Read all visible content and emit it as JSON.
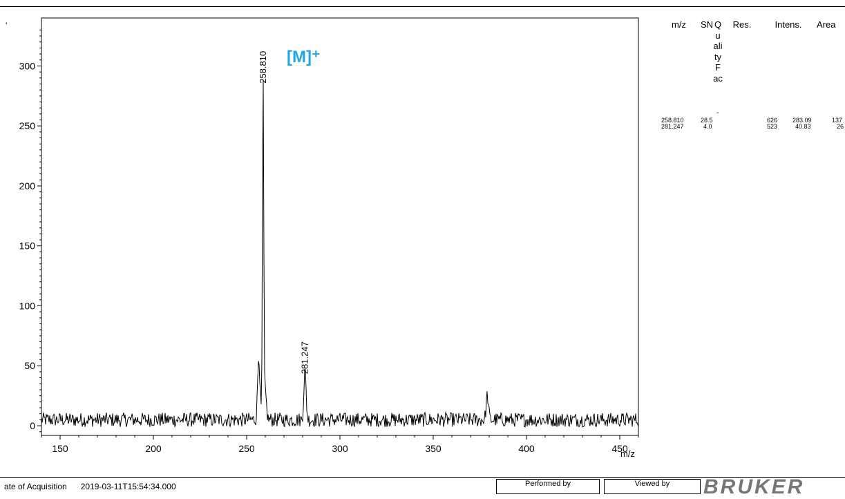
{
  "corner_mark": "'",
  "chart_data": {
    "type": "line",
    "title": "",
    "xlabel": "m/z",
    "ylabel": "",
    "xlim": [
      140,
      460
    ],
    "ylim": [
      -10,
      340
    ],
    "x_ticks": [
      150,
      200,
      250,
      300,
      350,
      400,
      450
    ],
    "y_ticks": [
      0,
      50,
      100,
      150,
      200,
      250,
      300
    ],
    "grid": false,
    "baseline_noise_level": 5,
    "peaks": [
      {
        "x": 256.5,
        "y": 54
      },
      {
        "x": 258.81,
        "y": 283.09,
        "label": "258.810"
      },
      {
        "x": 260.0,
        "y": 22
      },
      {
        "x": 281.247,
        "y": 40.83,
        "label": "281.247"
      },
      {
        "x": 379.0,
        "y": 20
      }
    ],
    "annotations": [
      {
        "text": "[M]⁺",
        "color": "#1fa8e0",
        "at_x": 271.5,
        "at_y": 303
      }
    ]
  },
  "peak_table": {
    "headers": {
      "mz": "m/z",
      "sn": "SN",
      "quality": "Quality Fac",
      "res": "Res.",
      "intens": "Intens.",
      "area": "Area"
    },
    "quality_trailing": "-",
    "rows": [
      {
        "mz": "258.810",
        "sn": "28.5",
        "quality": "",
        "res": "626",
        "intens": "283.09",
        "area": "137"
      },
      {
        "mz": "281.247",
        "sn": "4.0",
        "quality": "",
        "res": "523",
        "intens": "40.83",
        "area": "26"
      }
    ]
  },
  "footer": {
    "acquisition_label": "ate of Acquisition",
    "acquisition_value": "2019-03-11T15:54:34.000",
    "performed_by": "Performed by",
    "viewed_by": "Viewed by",
    "brand": "BRUKER"
  }
}
